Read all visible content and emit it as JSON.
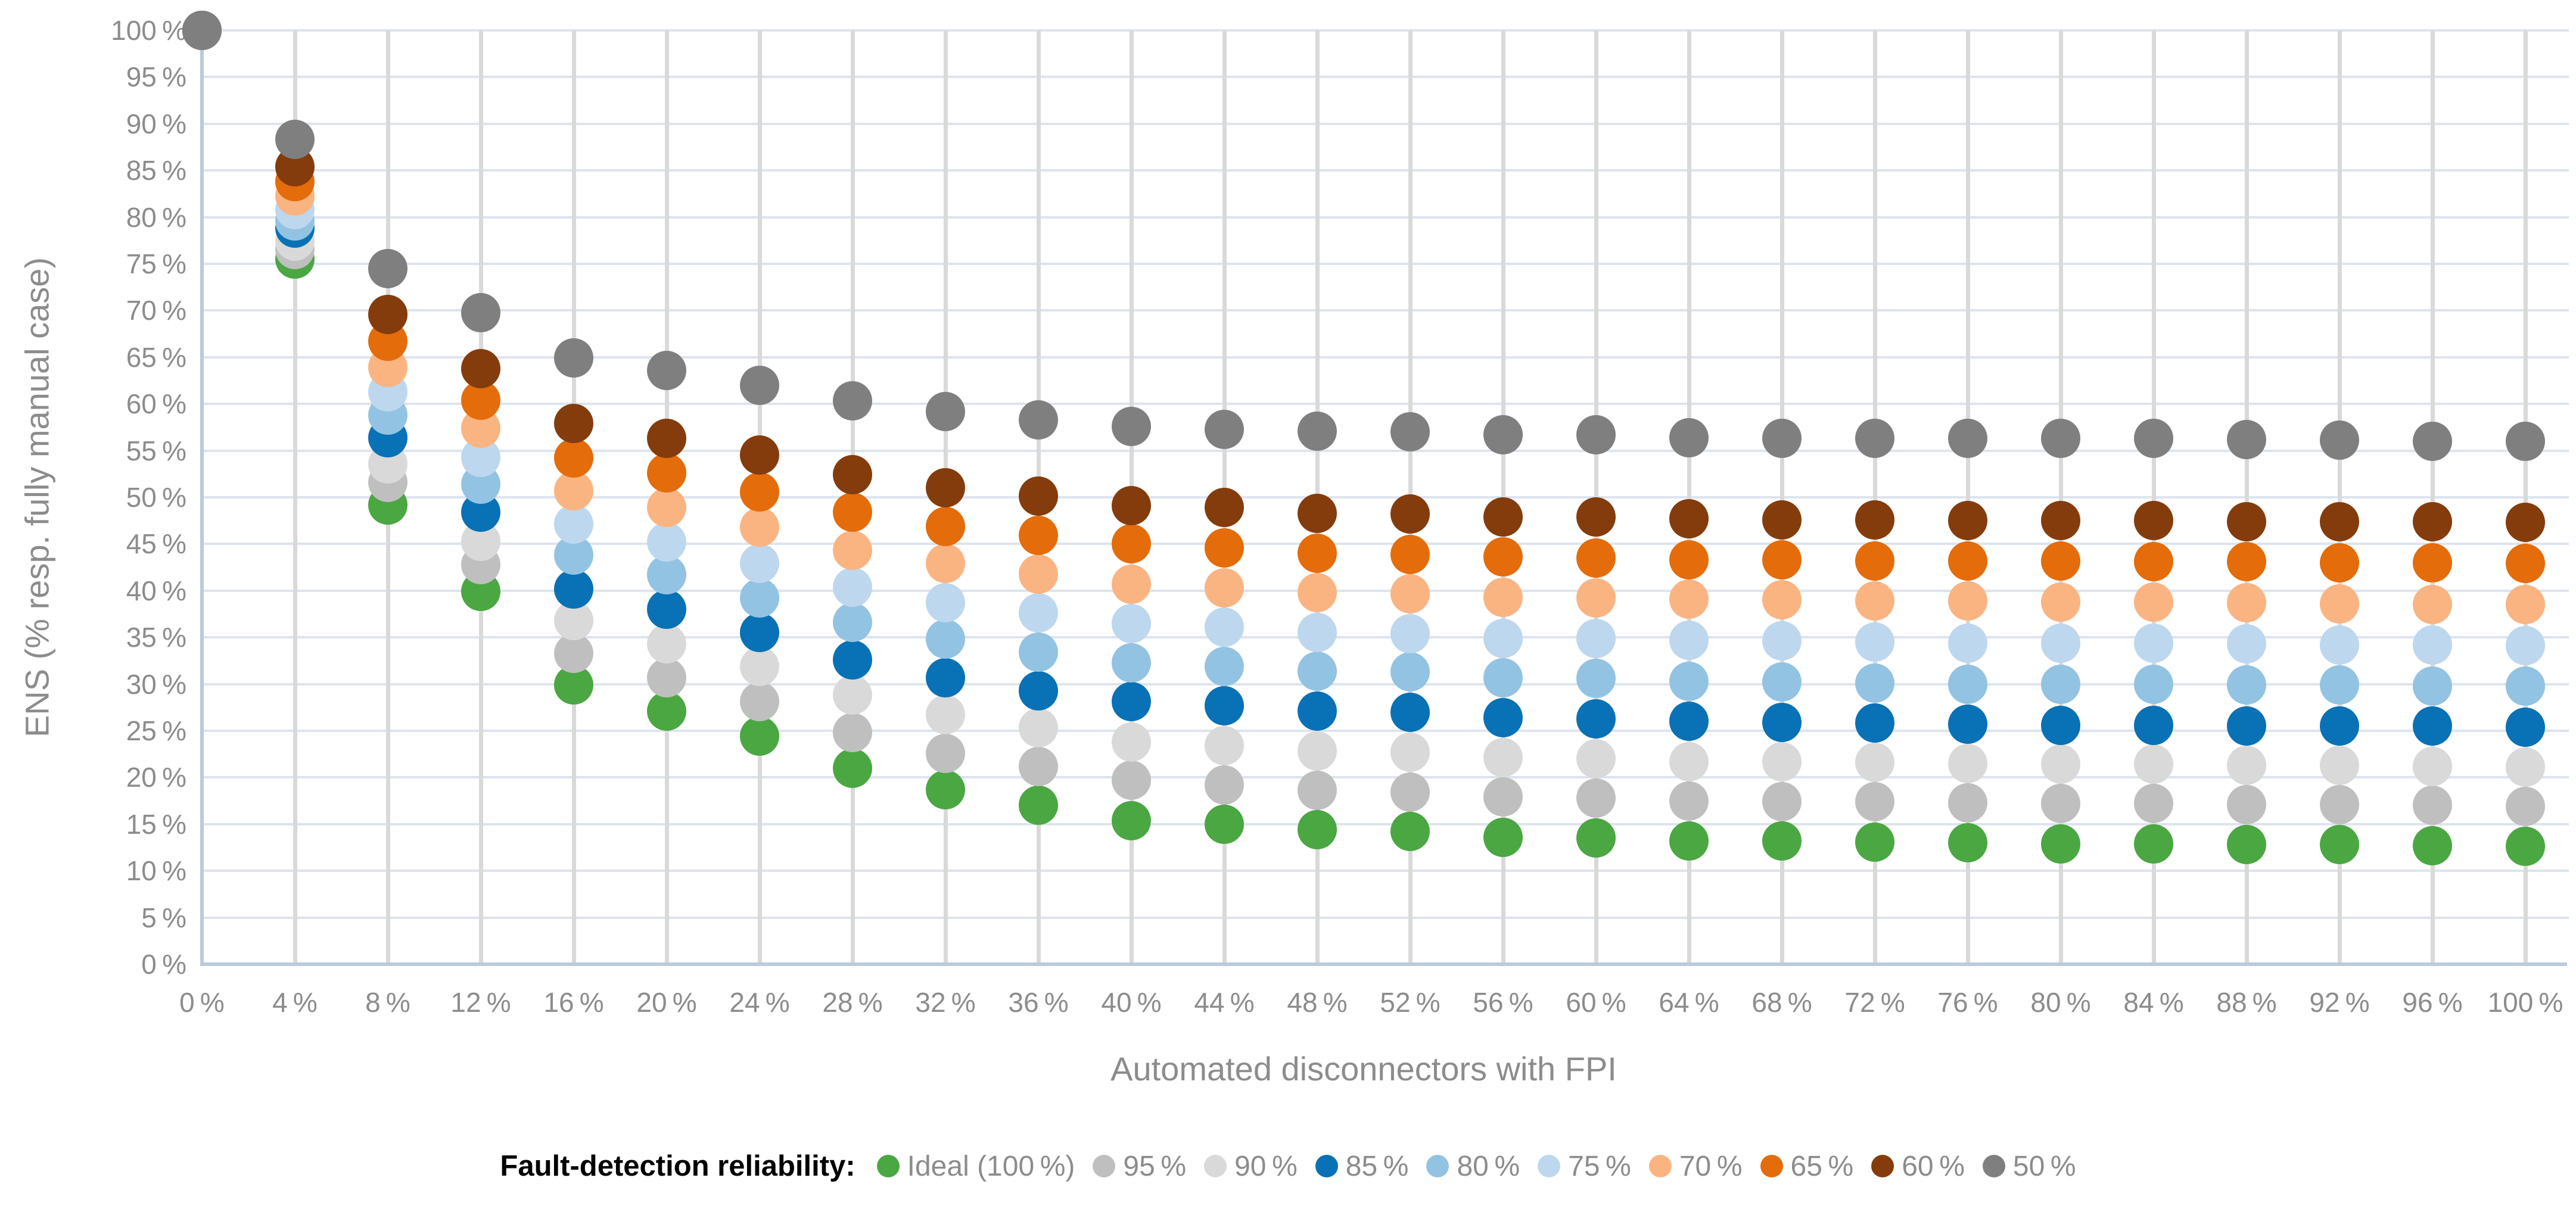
{
  "chart_data": {
    "type": "scatter",
    "title": "",
    "xlabel": "Automated disconnectors with FPI",
    "ylabel": "ENS (% resp. fully manual case)",
    "legend_title": "Fault-detection reliability:",
    "legend_position": "bottom",
    "grid": true,
    "xlim": [
      0,
      100
    ],
    "ylim": [
      0,
      100
    ],
    "y_tick_step": 5,
    "x_tick_labels": [
      "0 %",
      "4 %",
      "8 %",
      "12 %",
      "16 %",
      "20 %",
      "24 %",
      "28 %",
      "32 %",
      "36 %",
      "40 %",
      "44 %",
      "48 %",
      "52 %",
      "56 %",
      "60 %",
      "64 %",
      "68 %",
      "72 %",
      "76 %",
      "80 %",
      "84 %",
      "88 %",
      "92 %",
      "96 %",
      "100 %"
    ],
    "y_tick_labels": [
      "0 %",
      "5 %",
      "10 %",
      "15 %",
      "20 %",
      "25 %",
      "30 %",
      "35 %",
      "40 %",
      "45 %",
      "50 %",
      "55 %",
      "60 %",
      "65 %",
      "70 %",
      "75 %",
      "80 %",
      "85 %",
      "90 %",
      "95 %",
      "100 %"
    ],
    "x": [
      0,
      4,
      8,
      12,
      16,
      20,
      24,
      28,
      32,
      36,
      40,
      44,
      48,
      52,
      56,
      60,
      64,
      68,
      72,
      76,
      80,
      84,
      88,
      92,
      96,
      100
    ],
    "series": [
      {
        "name": "Ideal (100 %)",
        "color": "#4aa742",
        "values": [
          100,
          75.5,
          49.2,
          39.9,
          29.9,
          27.1,
          24.4,
          21.0,
          18.7,
          17.0,
          15.4,
          15.0,
          14.4,
          14.2,
          13.6,
          13.5,
          13.2,
          13.2,
          13.1,
          13.0,
          12.9,
          12.9,
          12.8,
          12.8,
          12.7,
          12.6
        ]
      },
      {
        "name": "95 %",
        "color": "#bfbfbf",
        "values": [
          100,
          76.5,
          51.6,
          42.8,
          33.3,
          30.7,
          28.1,
          24.8,
          22.6,
          21.2,
          19.7,
          19.2,
          18.6,
          18.4,
          17.9,
          17.8,
          17.5,
          17.4,
          17.4,
          17.3,
          17.2,
          17.2,
          17.1,
          17.1,
          17.0,
          16.9
        ]
      },
      {
        "name": "90 %",
        "color": "#d9d9d9",
        "values": [
          100,
          77.4,
          53.6,
          45.3,
          36.8,
          34.3,
          31.9,
          28.8,
          26.7,
          25.3,
          23.8,
          23.4,
          22.8,
          22.7,
          22.1,
          22.0,
          21.7,
          21.7,
          21.6,
          21.5,
          21.4,
          21.4,
          21.3,
          21.3,
          21.2,
          21.1
        ]
      },
      {
        "name": "85 %",
        "color": "#0971b5",
        "values": [
          100,
          78.8,
          56.4,
          48.4,
          40.2,
          38.0,
          35.5,
          32.6,
          30.7,
          29.3,
          28.1,
          27.7,
          27.1,
          27.0,
          26.4,
          26.3,
          26.0,
          25.9,
          25.8,
          25.7,
          25.6,
          25.6,
          25.5,
          25.5,
          25.5,
          25.4
        ]
      },
      {
        "name": "80 %",
        "color": "#93c3e3",
        "values": [
          100,
          79.6,
          58.8,
          51.4,
          43.8,
          41.7,
          39.2,
          36.6,
          34.8,
          33.4,
          32.3,
          31.9,
          31.4,
          31.3,
          30.7,
          30.6,
          30.3,
          30.2,
          30.1,
          30.0,
          30.0,
          30.0,
          29.9,
          29.9,
          29.8,
          29.8
        ]
      },
      {
        "name": "75 %",
        "color": "#bdd7ee",
        "values": [
          100,
          80.8,
          61.3,
          54.3,
          47.1,
          45.2,
          42.9,
          40.4,
          38.7,
          37.6,
          36.5,
          36.1,
          35.5,
          35.4,
          34.9,
          34.9,
          34.7,
          34.6,
          34.5,
          34.4,
          34.4,
          34.4,
          34.3,
          34.2,
          34.2,
          34.1
        ]
      },
      {
        "name": "70 %",
        "color": "#fab482",
        "values": [
          100,
          82.3,
          63.9,
          57.4,
          50.7,
          48.9,
          46.8,
          44.3,
          42.9,
          41.8,
          40.7,
          40.3,
          39.8,
          39.7,
          39.3,
          39.2,
          39.1,
          39.0,
          38.9,
          38.9,
          38.8,
          38.8,
          38.7,
          38.6,
          38.5,
          38.5
        ]
      },
      {
        "name": "65 %",
        "color": "#e46c0a",
        "values": [
          100,
          83.8,
          66.7,
          60.4,
          54.2,
          52.6,
          50.6,
          48.4,
          46.9,
          45.9,
          45.0,
          44.6,
          44.0,
          43.9,
          43.6,
          43.5,
          43.3,
          43.3,
          43.2,
          43.2,
          43.2,
          43.1,
          43.1,
          43.0,
          43.0,
          42.9
        ]
      },
      {
        "name": "60 %",
        "color": "#843c0c",
        "values": [
          100,
          85.4,
          69.6,
          63.8,
          57.9,
          56.3,
          54.5,
          52.4,
          51.0,
          50.1,
          49.1,
          48.9,
          48.3,
          48.2,
          47.9,
          47.9,
          47.7,
          47.6,
          47.6,
          47.5,
          47.5,
          47.5,
          47.4,
          47.4,
          47.4,
          47.3
        ]
      },
      {
        "name": "50 %",
        "color": "#7f7f7f",
        "values": [
          100,
          88.3,
          74.5,
          69.8,
          64.9,
          63.6,
          62.0,
          60.3,
          59.2,
          58.3,
          57.6,
          57.3,
          57.1,
          57.0,
          56.7,
          56.7,
          56.4,
          56.3,
          56.3,
          56.3,
          56.3,
          56.3,
          56.2,
          56.1,
          56.0,
          56.0
        ]
      }
    ]
  }
}
